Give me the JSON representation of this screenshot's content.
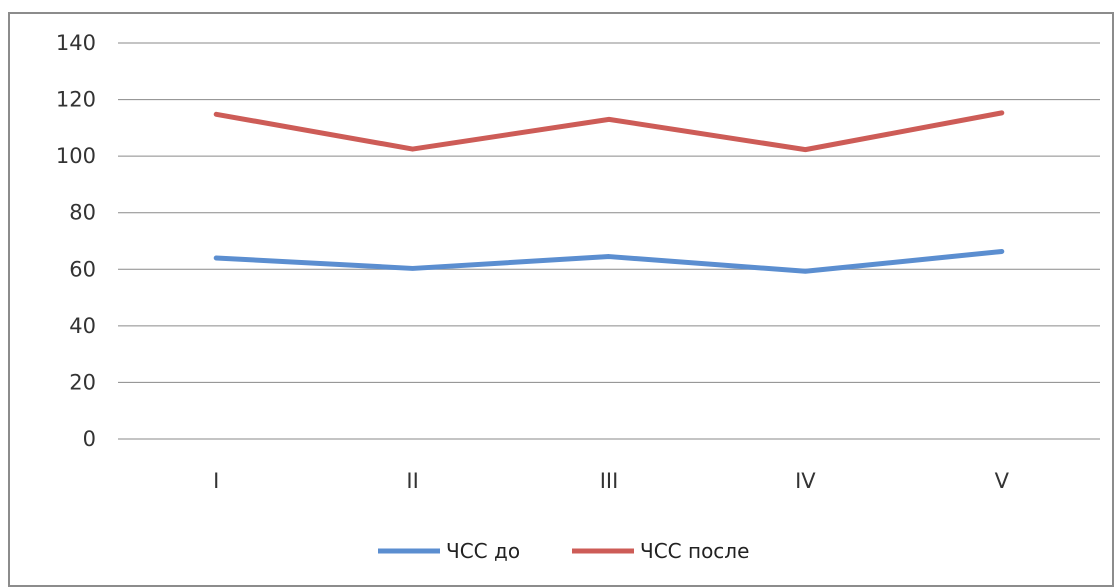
{
  "chart_data": {
    "type": "line",
    "title": "",
    "xlabel": "",
    "ylabel": "",
    "categories": [
      "I",
      "II",
      "III",
      "IV",
      "V"
    ],
    "ylim": [
      0,
      140
    ],
    "yticks": [
      0,
      20,
      40,
      60,
      80,
      100,
      120,
      140
    ],
    "grid": true,
    "legend_position": "bottom",
    "series": [
      {
        "name": "ЧСС до",
        "color": "#5b8ed0",
        "values": [
          64,
          60.3,
          64.5,
          59.3,
          66.3
        ]
      },
      {
        "name": "ЧСС после",
        "color": "#cd5c57",
        "values": [
          114.8,
          102.5,
          113,
          102.3,
          115.3
        ]
      }
    ]
  }
}
